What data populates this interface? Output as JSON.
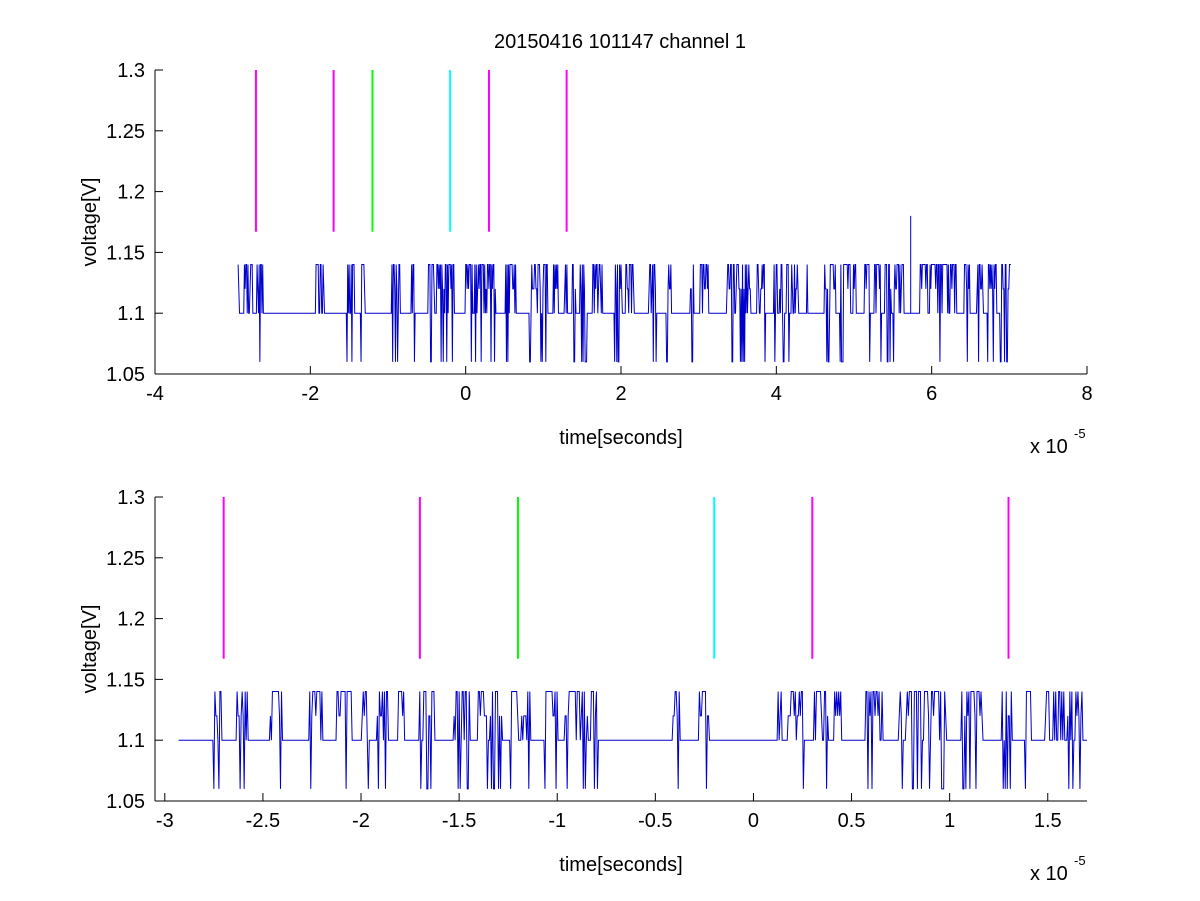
{
  "figure": {
    "title": "20150416 101147 channel 1"
  },
  "colors": {
    "signal": "#0000cc",
    "magenta": "#ff00ff",
    "green": "#00ff00",
    "cyan": "#00ffff"
  },
  "chart_data": [
    {
      "type": "line",
      "xlabel": "time[seconds]",
      "ylabel": "voltage[V]",
      "x_multiplier": "x 10",
      "x_exponent": "-5",
      "xlim": [
        -4,
        8
      ],
      "ylim": [
        1.05,
        1.3
      ],
      "xticks": [
        -4,
        -2,
        0,
        2,
        4,
        6,
        8
      ],
      "xtick_labels": [
        "-4",
        "-2",
        "0",
        "2",
        "4",
        "6",
        "8"
      ],
      "yticks": [
        1.05,
        1.1,
        1.15,
        1.2,
        1.25,
        1.3
      ],
      "ytick_labels": [
        "1.05",
        "1.1",
        "1.15",
        "1.2",
        "1.25",
        "1.3"
      ],
      "grid": false,
      "signal": {
        "x_range": [
          -2.93,
          7.02
        ],
        "baseline": 1.1,
        "levels": [
          1.06,
          1.1,
          1.12,
          1.14
        ],
        "spike": {
          "x": 5.73,
          "y": 1.18
        }
      },
      "markers": [
        {
          "x": -2.7,
          "y0": 1.167,
          "y1": 1.3,
          "color": "magenta"
        },
        {
          "x": -1.7,
          "y0": 1.167,
          "y1": 1.3,
          "color": "magenta"
        },
        {
          "x": -1.2,
          "y0": 1.167,
          "y1": 1.3,
          "color": "green"
        },
        {
          "x": -0.2,
          "y0": 1.167,
          "y1": 1.3,
          "color": "cyan"
        },
        {
          "x": 0.3,
          "y0": 1.167,
          "y1": 1.3,
          "color": "magenta"
        },
        {
          "x": 1.3,
          "y0": 1.167,
          "y1": 1.3,
          "color": "magenta"
        }
      ]
    },
    {
      "type": "line",
      "xlabel": "time[seconds]",
      "ylabel": "voltage[V]",
      "x_multiplier": "x 10",
      "x_exponent": "-5",
      "xlim": [
        -3.05,
        1.7
      ],
      "ylim": [
        1.05,
        1.3
      ],
      "xticks": [
        -3,
        -2.5,
        -2,
        -1.5,
        -1,
        -0.5,
        0,
        0.5,
        1,
        1.5
      ],
      "xtick_labels": [
        "-3",
        "-2.5",
        "-2",
        "-1.5",
        "-1",
        "-0.5",
        "0",
        "0.5",
        "1",
        "1.5"
      ],
      "yticks": [
        1.05,
        1.1,
        1.15,
        1.2,
        1.25,
        1.3
      ],
      "ytick_labels": [
        "1.05",
        "1.1",
        "1.15",
        "1.2",
        "1.25",
        "1.3"
      ],
      "grid": false,
      "signal": {
        "x_range": [
          -2.93,
          1.7
        ],
        "baseline": 1.1,
        "levels": [
          1.06,
          1.08,
          1.1,
          1.12,
          1.14
        ]
      },
      "markers": [
        {
          "x": -2.7,
          "y0": 1.167,
          "y1": 1.3,
          "color": "magenta"
        },
        {
          "x": -1.7,
          "y0": 1.167,
          "y1": 1.3,
          "color": "magenta"
        },
        {
          "x": -1.2,
          "y0": 1.167,
          "y1": 1.3,
          "color": "green"
        },
        {
          "x": -0.2,
          "y0": 1.167,
          "y1": 1.3,
          "color": "cyan"
        },
        {
          "x": 0.3,
          "y0": 1.167,
          "y1": 1.3,
          "color": "magenta"
        },
        {
          "x": 1.3,
          "y0": 1.167,
          "y1": 1.3,
          "color": "magenta"
        }
      ]
    }
  ]
}
